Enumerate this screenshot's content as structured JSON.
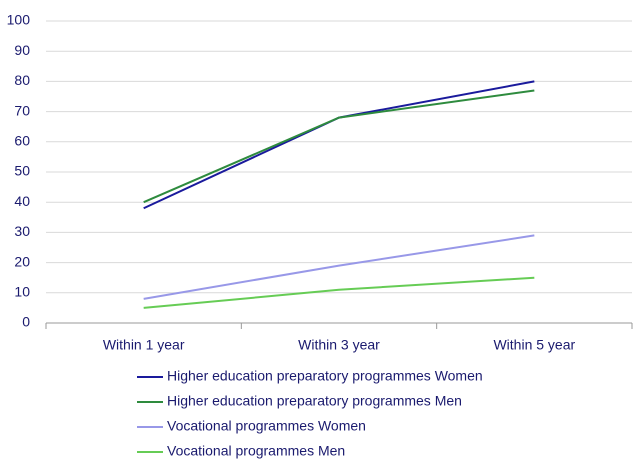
{
  "chart_data": {
    "type": "line",
    "categories": [
      "Within 1 year",
      "Within 3 year",
      "Within 5 year"
    ],
    "series": [
      {
        "name": "Higher education preparatory programmes Women",
        "color": "#1a1a9c",
        "values": [
          38,
          68,
          80
        ]
      },
      {
        "name": "Higher education preparatory programmes Men",
        "color": "#2e8b3e",
        "values": [
          40,
          68,
          77
        ]
      },
      {
        "name": "Vocational programmes Women",
        "color": "#9898e8",
        "values": [
          8,
          19,
          29
        ]
      },
      {
        "name": "Vocational programmes Men",
        "color": "#66cc55",
        "values": [
          5,
          11,
          15
        ]
      }
    ],
    "ylim": [
      0,
      100
    ],
    "yticks": [
      0,
      10,
      20,
      30,
      40,
      50,
      60,
      70,
      80,
      90,
      100
    ],
    "grid": true
  }
}
